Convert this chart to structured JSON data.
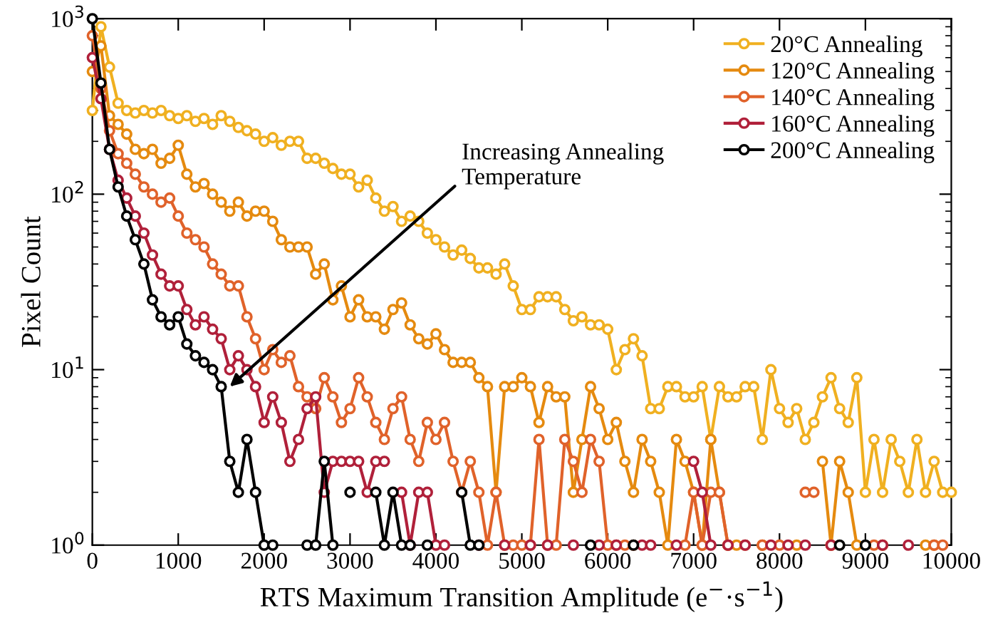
{
  "chart_data": {
    "type": "line",
    "xlabel": "RTS Maximum Transition Amplitude (e$^{−}$·s$^{−1}$)",
    "ylabel": "Pixel Count",
    "x": [
      0,
      100,
      200,
      300,
      400,
      500,
      600,
      700,
      800,
      900,
      1000,
      1100,
      1200,
      1300,
      1400,
      1500,
      1600,
      1700,
      1800,
      1900,
      2000,
      2100,
      2200,
      2300,
      2400,
      2500,
      2600,
      2700,
      2800,
      2900,
      3000,
      3100,
      3200,
      3300,
      3400,
      3500,
      3600,
      3700,
      3800,
      3900,
      4000,
      4100,
      4200,
      4300,
      4400,
      4500,
      4600,
      4700,
      4800,
      4900,
      5000,
      5100,
      5200,
      5300,
      5400,
      5500,
      5600,
      5700,
      5800,
      5900,
      6000,
      6100,
      6200,
      6300,
      6400,
      6500,
      6600,
      6700,
      6800,
      6900,
      7000,
      7100,
      7200,
      7300,
      7400,
      7500,
      7600,
      7700,
      7800,
      7900,
      8000,
      8100,
      8200,
      8300,
      8400,
      8500,
      8600,
      8700,
      8800,
      8900,
      9000,
      9100,
      9200,
      9300,
      9400,
      9500,
      9600,
      9700,
      9800,
      9900,
      10000
    ],
    "series": [
      {
        "name": "20°C Annealing",
        "color": "#f0b020",
        "values": [
          300,
          900,
          530,
          330,
          300,
          290,
          300,
          290,
          300,
          280,
          270,
          280,
          260,
          270,
          250,
          280,
          260,
          240,
          230,
          220,
          200,
          210,
          190,
          200,
          200,
          160,
          160,
          150,
          140,
          130,
          130,
          110,
          120,
          95,
          80,
          85,
          70,
          75,
          70,
          60,
          55,
          50,
          45,
          48,
          43,
          38,
          38,
          35,
          40,
          30,
          22,
          22,
          26,
          26,
          26,
          22,
          19,
          20,
          18,
          18,
          17,
          10,
          13,
          15,
          12,
          6,
          6,
          8,
          8,
          7,
          7,
          8,
          4,
          8,
          7,
          7,
          8,
          8,
          4,
          10,
          6,
          5,
          6,
          4,
          5,
          7,
          9,
          6,
          5,
          9,
          2,
          4,
          2,
          4,
          3,
          2,
          4,
          2,
          3,
          2,
          2
        ]
      },
      {
        "name": "120°C Annealing",
        "color": "#e58a0f",
        "values": [
          500,
          700,
          280,
          250,
          220,
          180,
          170,
          180,
          150,
          160,
          190,
          130,
          110,
          115,
          100,
          90,
          80,
          90,
          75,
          80,
          80,
          70,
          55,
          50,
          50,
          50,
          35,
          40,
          25,
          30,
          20,
          25,
          20,
          20,
          17,
          22,
          24,
          18,
          15,
          14,
          16,
          13,
          11,
          11,
          11,
          9,
          8,
          2,
          8,
          8,
          9,
          8,
          5,
          8,
          7,
          7,
          2,
          4,
          8,
          6,
          4,
          5,
          3,
          2,
          4,
          3,
          2,
          1,
          4,
          3,
          2,
          1,
          4,
          2,
          1,
          1,
          null,
          null,
          1,
          null,
          null,
          null,
          1,
          null,
          null,
          3,
          1,
          3,
          2,
          1,
          null,
          null,
          1,
          null,
          null,
          null,
          null,
          1,
          1,
          null,
          null
        ]
      },
      {
        "name": "140°C Annealing",
        "color": "#e0622a",
        "values": [
          800,
          400,
          230,
          170,
          150,
          130,
          110,
          100,
          90,
          95,
          75,
          60,
          55,
          50,
          40,
          35,
          30,
          30,
          20,
          15,
          10,
          13,
          11,
          12,
          8,
          7,
          6,
          9,
          7,
          5,
          6,
          9,
          7,
          5,
          4,
          6,
          7,
          4,
          3,
          5,
          4,
          5,
          3,
          2,
          3,
          2,
          1,
          2,
          1,
          1,
          1,
          1,
          4,
          1,
          1,
          4,
          3,
          2,
          4,
          3,
          1,
          1,
          1,
          1,
          null,
          null,
          null,
          null,
          null,
          1,
          2,
          1,
          2,
          2,
          1,
          null,
          1,
          null,
          1,
          null,
          1,
          null,
          null,
          2,
          2,
          null,
          1,
          null,
          null,
          null,
          null,
          1,
          null,
          null,
          null,
          null,
          null,
          null,
          1,
          1,
          null
        ]
      },
      {
        "name": "160°C Annealing",
        "color": "#b0203a",
        "values": [
          600,
          350,
          180,
          120,
          95,
          75,
          60,
          45,
          35,
          30,
          30,
          22,
          18,
          20,
          17,
          15,
          10,
          12,
          10,
          8,
          5,
          7,
          5,
          3,
          4,
          6,
          7,
          2,
          3,
          3,
          3,
          3,
          2,
          3,
          3,
          null,
          2,
          1,
          2,
          2,
          1,
          1,
          null,
          null,
          null,
          1,
          null,
          null,
          1,
          null,
          null,
          1,
          null,
          1,
          null,
          null,
          1,
          null,
          null,
          1,
          null,
          1,
          null,
          null,
          1,
          1,
          null,
          null,
          1,
          null,
          3,
          2,
          1,
          null,
          1,
          null,
          1,
          null,
          null,
          1,
          null,
          1,
          null,
          1,
          null,
          null,
          1,
          null,
          null,
          null,
          null,
          null,
          1,
          null,
          null,
          1,
          null,
          null,
          null,
          null,
          null
        ]
      },
      {
        "name": "200°C Annealing",
        "color": "#000000",
        "values": [
          1000,
          430,
          180,
          110,
          75,
          55,
          40,
          25,
          20,
          18,
          20,
          14,
          12,
          11,
          10,
          8,
          3,
          2,
          4,
          2,
          1,
          1,
          null,
          null,
          null,
          1,
          1,
          3,
          1,
          null,
          2,
          null,
          null,
          2,
          1,
          2,
          1,
          1,
          null,
          1,
          null,
          null,
          null,
          2,
          1,
          1,
          null,
          null,
          null,
          null,
          null,
          null,
          null,
          null,
          null,
          null,
          null,
          null,
          1,
          null,
          null,
          null,
          null,
          1,
          null,
          null,
          null,
          null,
          null,
          null,
          null,
          null,
          null,
          null,
          null,
          null,
          null,
          null,
          null,
          null,
          null,
          null,
          null,
          null,
          null,
          null,
          null,
          1,
          null,
          null,
          1,
          null,
          null,
          null,
          null,
          null,
          null,
          null,
          null,
          null,
          null
        ]
      }
    ],
    "log": "y",
    "xlim": [
      0,
      10000
    ],
    "ylim": [
      1,
      1000
    ],
    "xticks": [
      0,
      1000,
      2000,
      3000,
      4000,
      5000,
      6000,
      7000,
      8000,
      9000,
      10000
    ],
    "yticks": [
      {
        "value": 1,
        "label": "10$^{0}$"
      },
      {
        "value": 10,
        "label": "10$^{1}$"
      },
      {
        "value": 100,
        "label": "10$^{2}$"
      },
      {
        "value": 1000,
        "label": "10$^{3}$"
      }
    ],
    "annotations": [
      {
        "text": "Increasing Annealing\nTemperature",
        "x": 1600,
        "y": 8
      }
    ],
    "legend": "top right",
    "marker": "circle",
    "line_style": "solid",
    "grid": false
  }
}
